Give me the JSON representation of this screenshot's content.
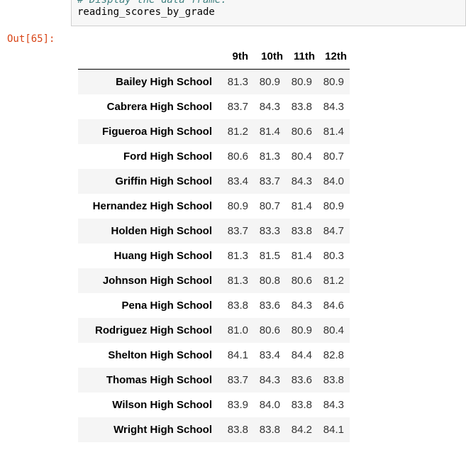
{
  "cell": {
    "comment": "# Display the data frame.",
    "code": "reading_scores_by_grade",
    "out_prompt": "Out[65]:"
  },
  "table": {
    "columns": [
      "9th",
      "10th",
      "11th",
      "12th"
    ],
    "rows": [
      {
        "school": "Bailey High School",
        "values": [
          "81.3",
          "80.9",
          "80.9",
          "80.9"
        ]
      },
      {
        "school": "Cabrera High School",
        "values": [
          "83.7",
          "84.3",
          "83.8",
          "84.3"
        ]
      },
      {
        "school": "Figueroa High School",
        "values": [
          "81.2",
          "81.4",
          "80.6",
          "81.4"
        ]
      },
      {
        "school": "Ford High School",
        "values": [
          "80.6",
          "81.3",
          "80.4",
          "80.7"
        ]
      },
      {
        "school": "Griffin High School",
        "values": [
          "83.4",
          "83.7",
          "84.3",
          "84.0"
        ]
      },
      {
        "school": "Hernandez High School",
        "values": [
          "80.9",
          "80.7",
          "81.4",
          "80.9"
        ]
      },
      {
        "school": "Holden High School",
        "values": [
          "83.7",
          "83.3",
          "83.8",
          "84.7"
        ]
      },
      {
        "school": "Huang High School",
        "values": [
          "81.3",
          "81.5",
          "81.4",
          "80.3"
        ]
      },
      {
        "school": "Johnson High School",
        "values": [
          "81.3",
          "80.8",
          "80.6",
          "81.2"
        ]
      },
      {
        "school": "Pena High School",
        "values": [
          "83.8",
          "83.6",
          "84.3",
          "84.6"
        ]
      },
      {
        "school": "Rodriguez High School",
        "values": [
          "81.0",
          "80.6",
          "80.9",
          "80.4"
        ]
      },
      {
        "school": "Shelton High School",
        "values": [
          "84.1",
          "83.4",
          "84.4",
          "82.8"
        ]
      },
      {
        "school": "Thomas High School",
        "values": [
          "83.7",
          "84.3",
          "83.6",
          "83.8"
        ]
      },
      {
        "school": "Wilson High School",
        "values": [
          "83.9",
          "84.0",
          "83.8",
          "84.3"
        ]
      },
      {
        "school": "Wright High School",
        "values": [
          "83.8",
          "83.8",
          "84.2",
          "84.1"
        ]
      }
    ]
  }
}
